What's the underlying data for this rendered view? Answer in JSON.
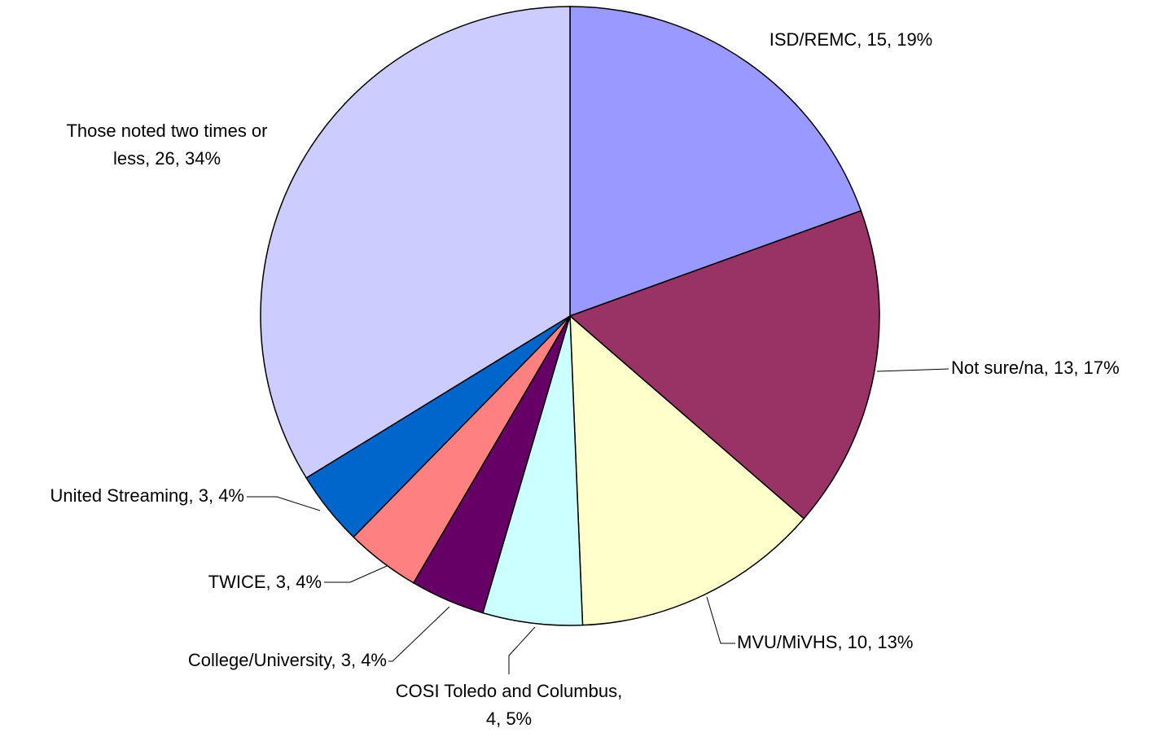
{
  "chart_data": {
    "type": "pie",
    "values": [
      15,
      13,
      10,
      4,
      3,
      3,
      3,
      26
    ],
    "value_labels": [
      [
        "ISD/REMC, 15, 19%"
      ],
      [
        "Not sure/na, 13, 17%"
      ],
      [
        "MVU/MiVHS, 10, 13%"
      ],
      [
        "COSI Toledo and Columbus,",
        "4, 5%"
      ],
      [
        "College/University, 3, 4%"
      ],
      [
        "TWICE, 3, 4%"
      ],
      [
        "United Streaming, 3, 4%"
      ],
      [
        "Those noted two times or",
        "less, 26, 34%"
      ]
    ],
    "colors": [
      "#9999ff",
      "#993366",
      "#ffffcc",
      "#ccffff",
      "#660066",
      "#ff8080",
      "#0066cc",
      "#ccccff"
    ]
  }
}
